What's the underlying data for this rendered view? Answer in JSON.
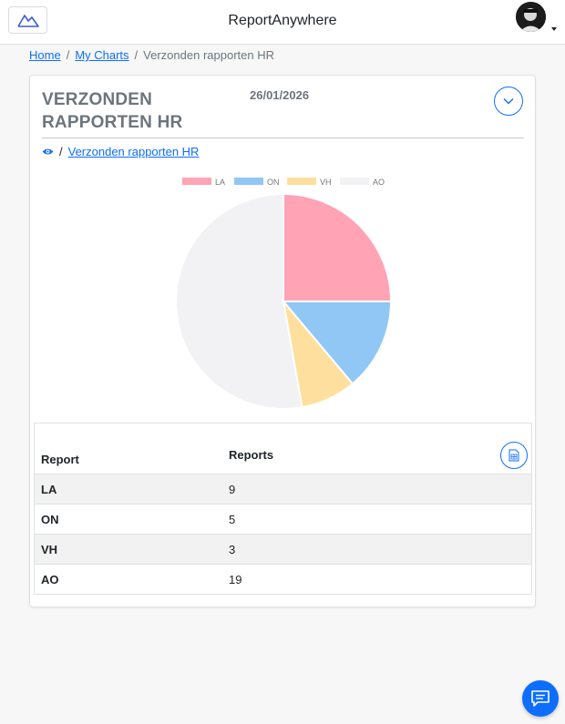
{
  "header": {
    "app_title": "ReportAnywhere",
    "logo_icon": "mountain-logo-icon"
  },
  "breadcrumb": {
    "home": "Home",
    "charts": "My Charts",
    "current": "Verzonden rapporten HR"
  },
  "card": {
    "title": "VERZONDEN RAPPORTEN HR",
    "date": "26/01/2026",
    "subnav_link": "Verzonden rapporten HR"
  },
  "chart_data": {
    "type": "pie",
    "categories": [
      "LA",
      "ON",
      "VH",
      "AO"
    ],
    "values": [
      9,
      5,
      3,
      19
    ],
    "colors": [
      "#ffa3b5",
      "#90c7f5",
      "#ffdf9e",
      "#f2f2f4"
    ],
    "legend_position": "top"
  },
  "table": {
    "col1_header": "Report",
    "col2_header": "Reports",
    "rows": [
      {
        "report": "LA",
        "count": "9"
      },
      {
        "report": "ON",
        "count": "5"
      },
      {
        "report": "VH",
        "count": "3"
      },
      {
        "report": "AO",
        "count": "19"
      }
    ]
  },
  "colors": {
    "accent": "#0d6efd"
  }
}
